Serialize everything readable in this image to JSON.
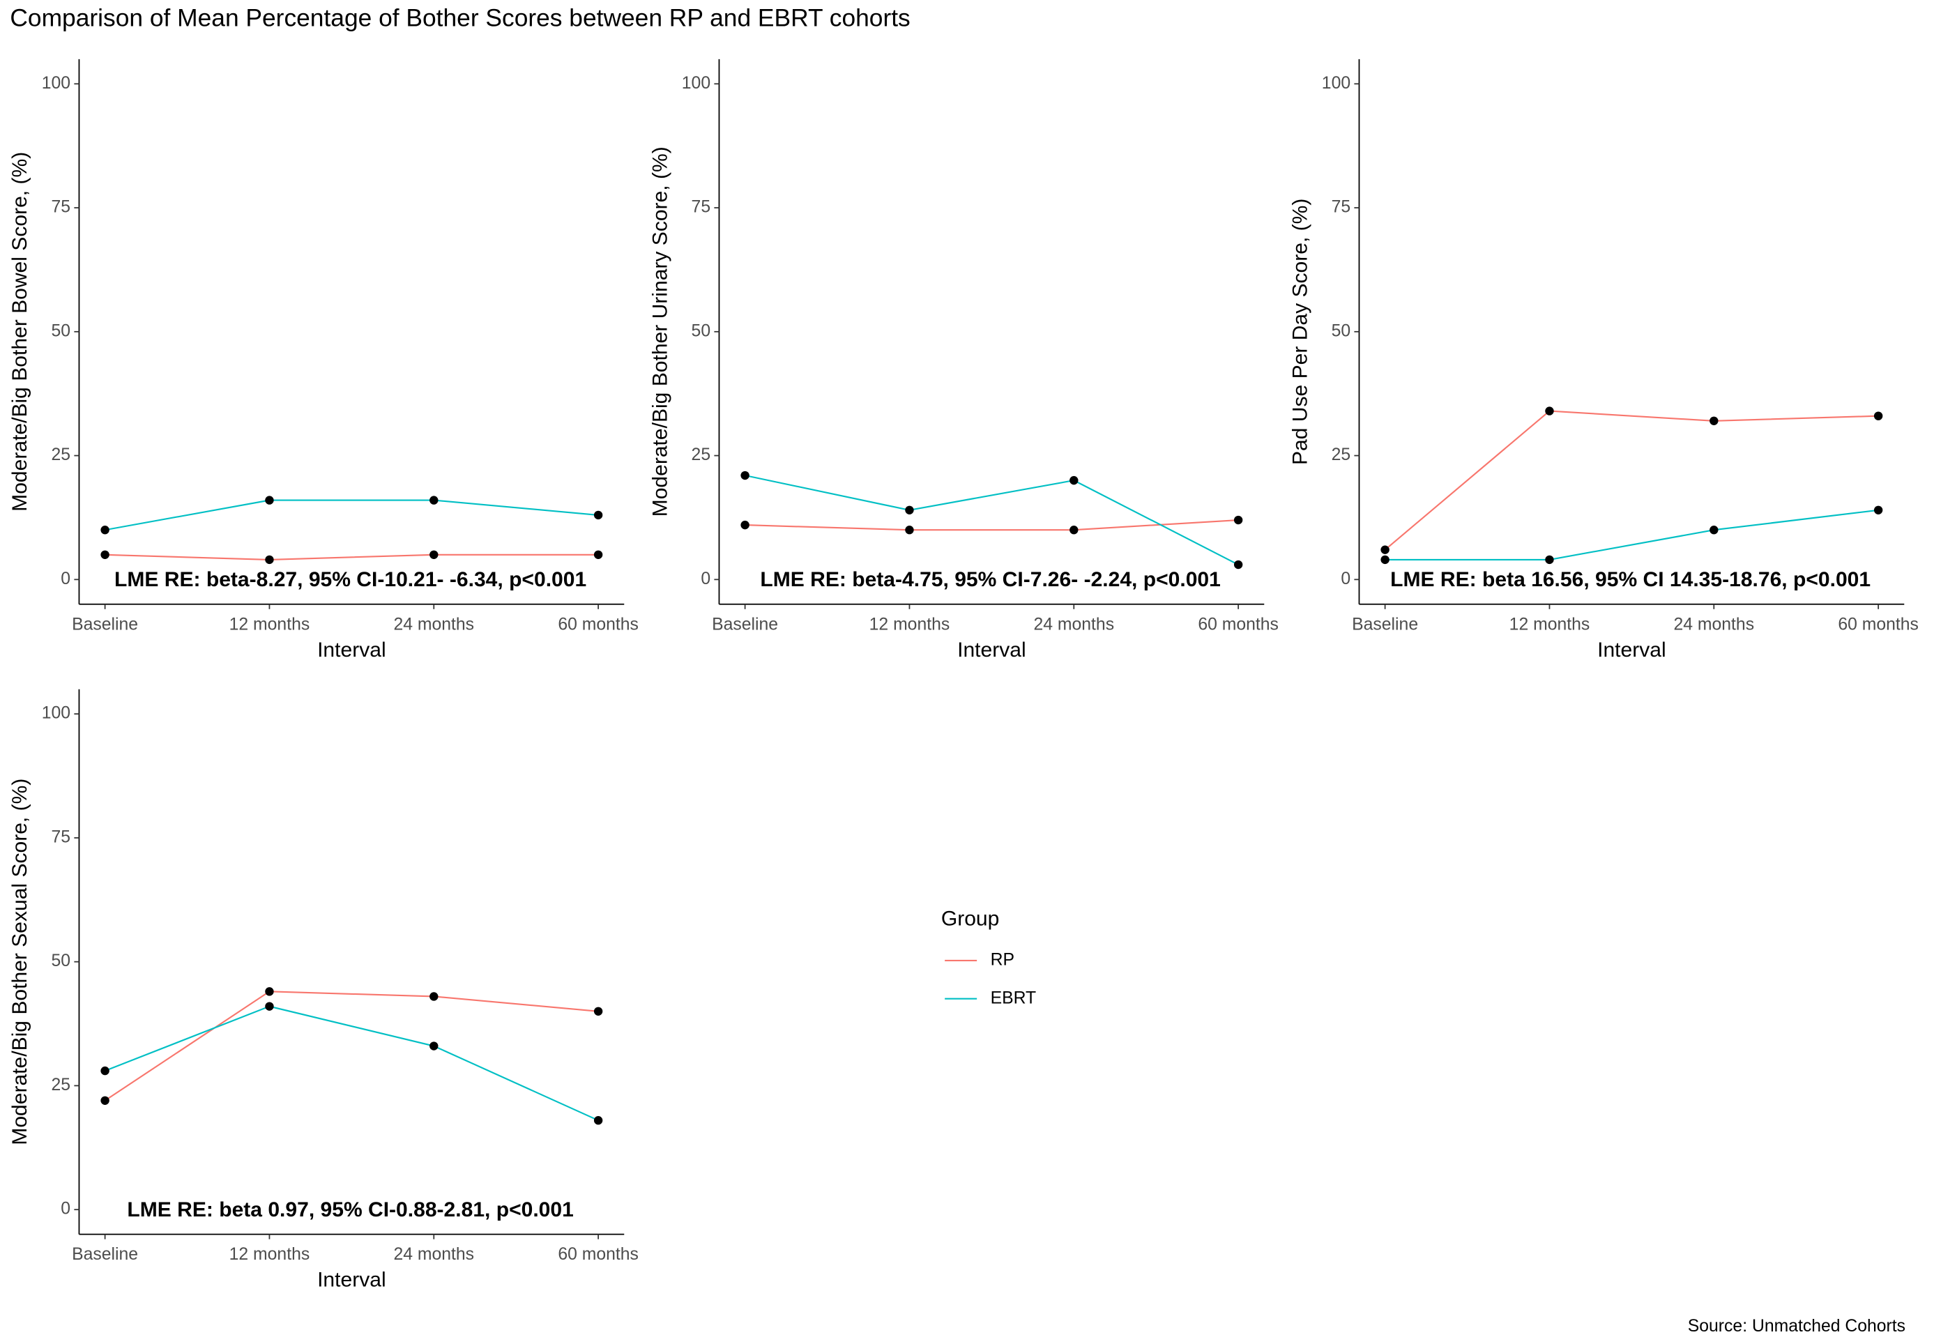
{
  "title": "Comparison of Mean Percentage of Bother Scores between RP and EBRT cohorts",
  "caption": "Source: Unmatched Cohorts",
  "legend_title": "Group",
  "chart_data": [
    {
      "type": "line",
      "x_label": "Interval",
      "y_label": "Moderate/Big Bother Bowel Score, (%)",
      "annotation": "LME RE: beta-8.27, 95% CI-10.21- -6.34, p<0.001",
      "categories": [
        "Baseline",
        "12 months",
        "24 months",
        "60 months"
      ],
      "series": [
        {
          "name": "RP",
          "color": "#F8766D",
          "values": [
            5,
            4,
            5,
            5
          ]
        },
        {
          "name": "EBRT",
          "color": "#00BFC4",
          "values": [
            10,
            16,
            16,
            13
          ]
        }
      ],
      "ylim": [
        0,
        100
      ],
      "yticks": [
        0,
        25,
        50,
        75,
        100
      ]
    },
    {
      "type": "line",
      "x_label": "Interval",
      "y_label": "Moderate/Big Bother Urinary Score, (%)",
      "annotation": "LME RE: beta-4.75, 95% CI-7.26- -2.24, p<0.001",
      "categories": [
        "Baseline",
        "12 months",
        "24 months",
        "60 months"
      ],
      "series": [
        {
          "name": "RP",
          "color": "#F8766D",
          "values": [
            11,
            10,
            10,
            12
          ]
        },
        {
          "name": "EBRT",
          "color": "#00BFC4",
          "values": [
            21,
            14,
            20,
            3
          ]
        }
      ],
      "ylim": [
        0,
        100
      ],
      "yticks": [
        0,
        25,
        50,
        75,
        100
      ]
    },
    {
      "type": "line",
      "x_label": "Interval",
      "y_label": "Pad Use Per Day Score, (%)",
      "annotation": "LME RE: beta 16.56, 95% CI 14.35-18.76, p<0.001",
      "categories": [
        "Baseline",
        "12 months",
        "24 months",
        "60 months"
      ],
      "series": [
        {
          "name": "RP",
          "color": "#F8766D",
          "values": [
            6,
            34,
            32,
            33
          ]
        },
        {
          "name": "EBRT",
          "color": "#00BFC4",
          "values": [
            4,
            4,
            10,
            14
          ]
        }
      ],
      "ylim": [
        0,
        100
      ],
      "yticks": [
        0,
        25,
        50,
        75,
        100
      ]
    },
    {
      "type": "line",
      "x_label": "Interval",
      "y_label": "Moderate/Big Bother Sexual Score, (%)",
      "annotation": "LME RE: beta 0.97, 95% CI-0.88-2.81, p<0.001",
      "categories": [
        "Baseline",
        "12 months",
        "24 months",
        "60 months"
      ],
      "series": [
        {
          "name": "RP",
          "color": "#F8766D",
          "values": [
            22,
            44,
            43,
            40
          ]
        },
        {
          "name": "EBRT",
          "color": "#00BFC4",
          "values": [
            28,
            41,
            33,
            18
          ]
        }
      ],
      "ylim": [
        0,
        100
      ],
      "yticks": [
        0,
        25,
        50,
        75,
        100
      ]
    }
  ]
}
